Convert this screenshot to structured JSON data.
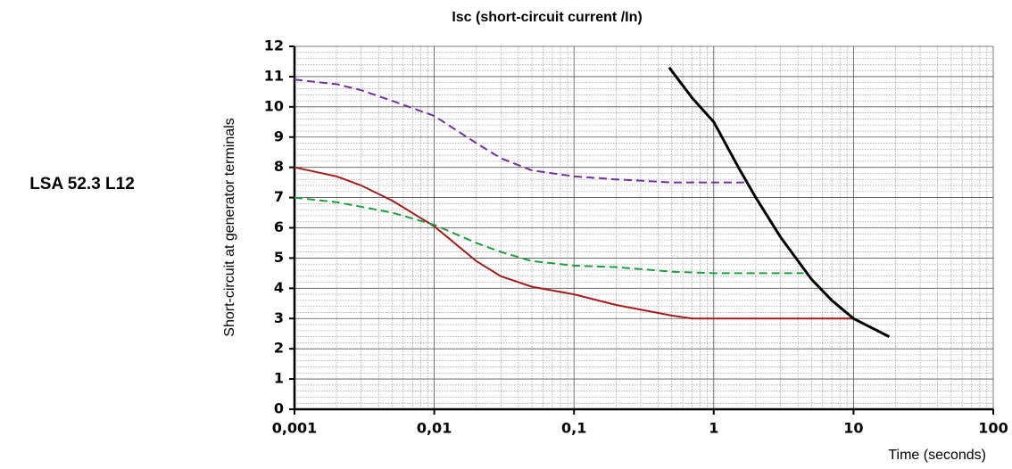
{
  "chart_data": {
    "type": "line",
    "title": "Isc (short-circuit current /In)",
    "subtitle": "LSA 52.3 L12",
    "xlabel": "Time (seconds)",
    "ylabel": "Short-circuit at generator terminals",
    "xscale": "log",
    "xlim": [
      0.001,
      100
    ],
    "xticks": [
      {
        "value": 0.001,
        "label": "0,001"
      },
      {
        "value": 0.01,
        "label": "0,01"
      },
      {
        "value": 0.1,
        "label": "0,1"
      },
      1,
      10,
      100
    ],
    "ylim": [
      0,
      12
    ],
    "yticks": [
      0,
      1,
      2,
      3,
      4,
      5,
      6,
      7,
      8,
      9,
      10,
      11,
      12
    ],
    "grid": true,
    "series": [
      {
        "color": "#7030a0",
        "dash": true,
        "x": [
          0.001,
          0.002,
          0.003,
          0.005,
          0.01,
          0.02,
          0.03,
          0.05,
          0.1,
          0.2,
          0.5,
          1,
          1.75
        ],
        "values": [
          10.9,
          10.75,
          10.55,
          10.2,
          9.7,
          8.8,
          8.3,
          7.9,
          7.7,
          7.6,
          7.5,
          7.5,
          7.5
        ]
      },
      {
        "color": "#a31d1d",
        "dash": false,
        "x": [
          0.001,
          0.002,
          0.003,
          0.005,
          0.01,
          0.02,
          0.03,
          0.05,
          0.1,
          0.2,
          0.5,
          0.7,
          1,
          10
        ],
        "values": [
          8.0,
          7.7,
          7.4,
          6.9,
          6.05,
          4.9,
          4.4,
          4.05,
          3.8,
          3.45,
          3.1,
          3.0,
          3.0,
          3.0
        ]
      },
      {
        "color": "#1e9e3e",
        "dash": true,
        "x": [
          0.001,
          0.002,
          0.005,
          0.01,
          0.02,
          0.03,
          0.05,
          0.1,
          0.2,
          0.5,
          1,
          2,
          4.4
        ],
        "values": [
          7.0,
          6.85,
          6.5,
          6.1,
          5.5,
          5.2,
          4.9,
          4.75,
          4.7,
          4.55,
          4.5,
          4.5,
          4.5
        ]
      },
      {
        "color": "#000000",
        "dash": false,
        "x": [
          0.48,
          0.7,
          1,
          1.5,
          2,
          3,
          5,
          7,
          10,
          18
        ],
        "values": [
          11.3,
          10.3,
          9.5,
          8.0,
          7.0,
          5.7,
          4.3,
          3.6,
          3.0,
          2.4
        ]
      }
    ]
  }
}
